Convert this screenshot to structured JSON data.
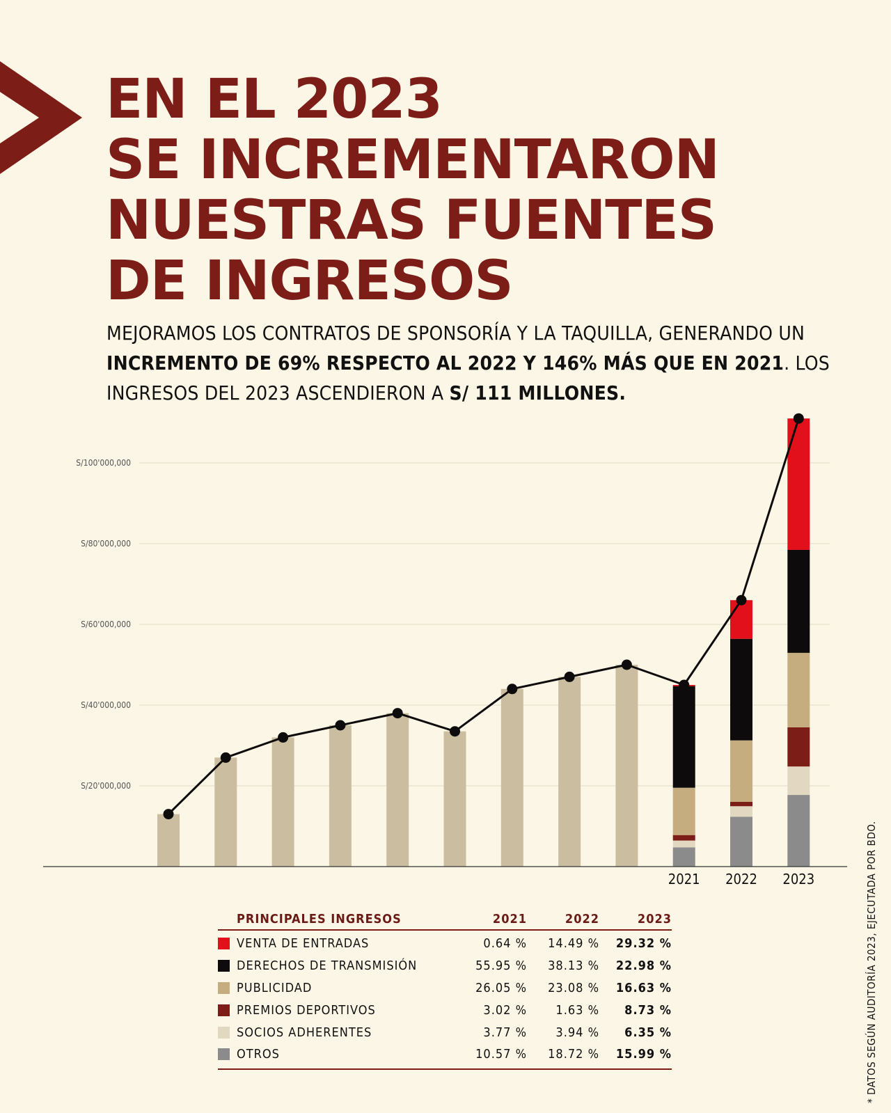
{
  "headline": {
    "line1": "EN EL 2023",
    "line2": "SE INCREMENTARON",
    "line3": "NUESTRAS FUENTES",
    "line4": "DE INGRESOS"
  },
  "subtitle": {
    "part1": "MEJORAMOS LOS CONTRATOS DE SPONSORÍA Y LA TAQUILLA, GENERANDO UN ",
    "bold1": "INCREMENTO DE 69% RESPECTO AL 2022 Y 146% MÁS QUE EN 2021",
    "part2": ". LOS INGRESOS DEL 2023 ASCENDIERON A ",
    "bold2": "S/ 111 MILLONES."
  },
  "colors": {
    "brand": "#7d1d17",
    "background": "#fbf6e6",
    "historic_bar": "#cbbd9f",
    "grid": "#e3d9c4"
  },
  "chart_data": {
    "type": "bar",
    "title": "",
    "xlabel": "",
    "ylabel": "",
    "ylim": [
      0,
      110000000
    ],
    "yticks": [
      20000000,
      40000000,
      60000000,
      80000000,
      100000000
    ],
    "ytick_labels": [
      "S/20'000,000",
      "S/40'000,000",
      "S/60'000,000",
      "S/80'000,000",
      "S/100'000,000"
    ],
    "historic_values": [
      13000000,
      27000000,
      32000000,
      35000000,
      38000000,
      33500000,
      44000000,
      47000000,
      50000000
    ],
    "categories": [
      "2021",
      "2022",
      "2023"
    ],
    "stacked_totals": [
      45000000,
      66000000,
      111000000
    ],
    "series": [
      {
        "name": "VENTA DE ENTRADAS",
        "color": "#e2101b",
        "shares": [
          0.64,
          14.49,
          29.32
        ]
      },
      {
        "name": "DERECHOS DE TRANSMISIÓN",
        "color": "#0d0b0b",
        "shares": [
          55.95,
          38.13,
          22.98
        ]
      },
      {
        "name": "PUBLICIDAD",
        "color": "#c5ad7f",
        "shares": [
          26.05,
          23.08,
          16.63
        ]
      },
      {
        "name": "PREMIOS DEPORTIVOS",
        "color": "#7d1d17",
        "shares": [
          3.02,
          1.63,
          8.73
        ]
      },
      {
        "name": "SOCIOS ADHERENTES",
        "color": "#e2d8c2",
        "shares": [
          3.77,
          3.94,
          6.35
        ]
      },
      {
        "name": "OTROS",
        "color": "#8b8b8b",
        "shares": [
          10.57,
          18.72,
          15.99
        ]
      }
    ],
    "line_values": [
      13000000,
      27000000,
      32000000,
      35000000,
      38000000,
      33500000,
      44000000,
      47000000,
      50000000,
      45000000,
      66000000,
      111000000
    ]
  },
  "legend": {
    "header": {
      "name": "PRINCIPALES INGRESOS",
      "y2021": "2021",
      "y2022": "2022",
      "y2023": "2023"
    },
    "rows": [
      {
        "label": "VENTA DE ENTRADAS",
        "color": "#e2101b",
        "v2021": "0.64 %",
        "v2022": "14.49 %",
        "v2023": "29.32 %"
      },
      {
        "label": "DERECHOS DE TRANSMISIÓN",
        "color": "#0d0b0b",
        "v2021": "55.95 %",
        "v2022": "38.13 %",
        "v2023": "22.98 %"
      },
      {
        "label": "PUBLICIDAD",
        "color": "#c5ad7f",
        "v2021": "26.05 %",
        "v2022": "23.08 %",
        "v2023": "16.63 %"
      },
      {
        "label": "PREMIOS DEPORTIVOS",
        "color": "#7d1d17",
        "v2021": "3.02 %",
        "v2022": "1.63 %",
        "v2023": "8.73 %"
      },
      {
        "label": "SOCIOS ADHERENTES",
        "color": "#e2d8c2",
        "v2021": "3.77 %",
        "v2022": "3.94 %",
        "v2023": "6.35 %"
      },
      {
        "label": "OTROS",
        "color": "#8b8b8b",
        "v2021": "10.57 %",
        "v2022": "18.72 %",
        "v2023": "15.99 %"
      }
    ]
  },
  "footnote": "* DATOS SEGÚN AUDITORÍA 2023, EJECUTADA POR BDO."
}
